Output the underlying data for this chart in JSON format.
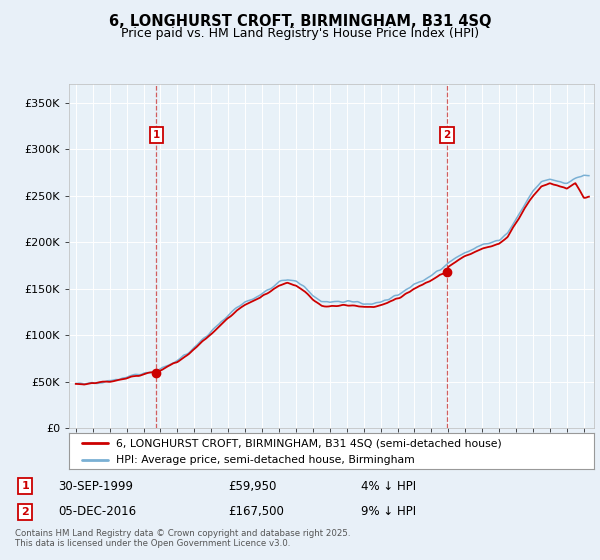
{
  "title": "6, LONGHURST CROFT, BIRMINGHAM, B31 4SQ",
  "subtitle": "Price paid vs. HM Land Registry's House Price Index (HPI)",
  "title_fontsize": 10.5,
  "subtitle_fontsize": 9,
  "background_color": "#e8f0f8",
  "plot_bg_color": "#e8f1f8",
  "ylim": [
    0,
    370000
  ],
  "yticks": [
    0,
    50000,
    100000,
    150000,
    200000,
    250000,
    300000,
    350000
  ],
  "ytick_labels": [
    "£0",
    "£50K",
    "£100K",
    "£150K",
    "£200K",
    "£250K",
    "£300K",
    "£350K"
  ],
  "sale1_date": 1999.75,
  "sale1_price": 59950,
  "sale1_label": "1",
  "sale1_text": "30-SEP-1999",
  "sale1_amount": "£59,950",
  "sale1_hpi": "4% ↓ HPI",
  "sale2_date": 2016.92,
  "sale2_price": 167500,
  "sale2_label": "2",
  "sale2_text": "05-DEC-2016",
  "sale2_amount": "£167,500",
  "sale2_hpi": "9% ↓ HPI",
  "line_color_property": "#cc0000",
  "line_color_hpi": "#7ab0d4",
  "legend_property": "6, LONGHURST CROFT, BIRMINGHAM, B31 4SQ (semi-detached house)",
  "legend_hpi": "HPI: Average price, semi-detached house, Birmingham",
  "footer": "Contains HM Land Registry data © Crown copyright and database right 2025.\nThis data is licensed under the Open Government Licence v3.0.",
  "grid_color": "#ffffff"
}
